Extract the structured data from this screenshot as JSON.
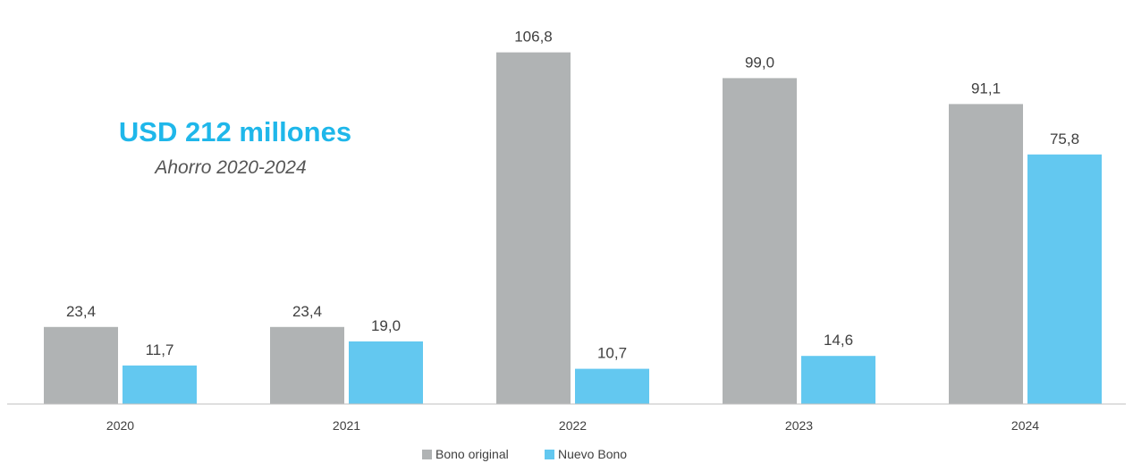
{
  "annotation": {
    "headline": "USD 212 millones",
    "subline": "Ahorro 2020-2024"
  },
  "colors": {
    "original": "#b0b3b4",
    "nuevo": "#63c8f0",
    "headline": "#1fb7ea",
    "axis": "#bfbfbf",
    "text": "#404040"
  },
  "chart_data": {
    "type": "bar",
    "categories": [
      "2020",
      "2021",
      "2022",
      "2023",
      "2024"
    ],
    "series": [
      {
        "name": "Bono original",
        "values": [
          23.4,
          23.4,
          106.8,
          99.0,
          91.1
        ],
        "labels": [
          "23,4",
          "23,4",
          "106,8",
          "99,0",
          "91,1"
        ]
      },
      {
        "name": "Nuevo Bono",
        "values": [
          11.7,
          19.0,
          10.7,
          14.6,
          75.8
        ],
        "labels": [
          "11,7",
          "19,0",
          "10,7",
          "14,6",
          "75,8"
        ]
      }
    ],
    "ylim": [
      0,
      120
    ],
    "legend_position": "bottom",
    "grid": false
  }
}
